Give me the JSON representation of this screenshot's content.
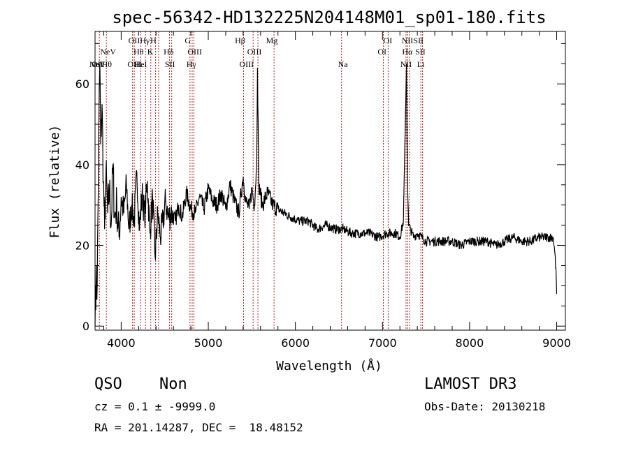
{
  "chart_data": {
    "type": "line",
    "title": "spec-56342-HD132225N204148M01_sp01-180.fits",
    "xlabel": "Wavelength (Å)",
    "ylabel": "Flux (relative)",
    "xlim": [
      3700,
      9100
    ],
    "ylim": [
      -1,
      73
    ],
    "x_ticks": [
      4000,
      5000,
      6000,
      7000,
      8000,
      9000
    ],
    "y_ticks": [
      0,
      20,
      40,
      60
    ],
    "x_minor_step": 200,
    "y_minor_step": 5,
    "series": [
      {
        "name": "flux",
        "x": [
          3700,
          3705,
          3725,
          3745,
          3755,
          3765,
          3780,
          3795,
          3810,
          3825,
          3845,
          3865,
          3885,
          3905,
          3925,
          3950,
          3975,
          4000,
          4030,
          4060,
          4090,
          4120,
          4150,
          4180,
          4210,
          4240,
          4270,
          4300,
          4330,
          4360,
          4390,
          4420,
          4450,
          4480,
          4510,
          4540,
          4580,
          4620,
          4660,
          4700,
          4750,
          4800,
          4850,
          4900,
          4950,
          5000,
          5050,
          5100,
          5150,
          5200,
          5250,
          5300,
          5350,
          5400,
          5430,
          5470,
          5500,
          5530,
          5555,
          5565,
          5580,
          5620,
          5680,
          5740,
          5800,
          5870,
          5950,
          6050,
          6150,
          6250,
          6350,
          6450,
          6550,
          6650,
          6750,
          6850,
          6950,
          7050,
          7150,
          7200,
          7240,
          7260,
          7275,
          7285,
          7300,
          7320,
          7340,
          7360,
          7400,
          7450,
          7500,
          7600,
          7700,
          7800,
          7900,
          8000,
          8100,
          8200,
          8300,
          8400,
          8500,
          8600,
          8700,
          8800,
          8900,
          8960,
          8980,
          8995,
          9000
        ],
        "y": [
          0,
          10,
          10,
          52,
          65,
          45,
          55,
          36,
          24,
          38,
          28,
          34,
          25,
          40,
          27,
          30,
          22,
          32,
          28,
          35,
          24,
          30,
          26,
          38,
          24,
          33,
          27,
          36,
          23,
          32,
          17,
          28,
          22,
          26,
          31,
          27,
          28,
          26,
          30,
          27,
          33,
          29,
          28,
          32,
          29,
          34,
          31,
          30,
          33,
          29,
          35,
          31,
          28,
          37,
          31,
          29,
          34,
          30,
          40,
          64,
          35,
          30,
          33,
          30,
          29,
          28,
          27,
          26,
          26,
          24,
          25,
          24,
          24,
          23,
          23,
          23,
          22,
          23,
          23,
          22,
          26,
          48,
          65,
          38,
          25,
          24,
          23,
          22,
          23,
          22,
          21,
          21,
          21,
          21,
          20,
          21,
          21,
          21,
          20,
          21,
          22,
          21,
          21,
          22,
          22,
          22,
          18,
          12,
          8
        ]
      }
    ],
    "line_groups": [
      {
        "labels": [
          {
            "text": "NeV",
            "x": 3726
          },
          {
            "text": "OII",
            "x": 3727
          },
          {
            "text": "Hθ",
            "x": 3835
          },
          {
            "text": "OIII",
            "x": 4155
          },
          {
            "text": "HeI",
            "x": 4225
          },
          {
            "text": "SII",
            "x": 4560
          },
          {
            "text": "Hγ",
            "x": 4805
          },
          {
            "text": "OIII",
            "x": 5440
          },
          {
            "text": "Na",
            "x": 6545
          },
          {
            "text": "NII",
            "x": 7270
          },
          {
            "text": "Li",
            "x": 7440
          }
        ]
      },
      {
        "labels": [
          {
            "text": "NeV",
            "x": 3850
          },
          {
            "text": "Hθ",
            "x": 4200
          },
          {
            "text": "K",
            "x": 4335
          },
          {
            "text": "Hδ",
            "x": 4545
          },
          {
            "text": "OIII",
            "x": 4845
          },
          {
            "text": "OIII",
            "x": 5530
          },
          {
            "text": "OI",
            "x": 6995
          },
          {
            "text": "Hα",
            "x": 7285
          },
          {
            "text": "SII",
            "x": 7435
          }
        ]
      },
      {
        "labels": [
          {
            "text": "OIIHγ",
            "x": 4205
          },
          {
            "text": "H",
            "x": 4370
          },
          {
            "text": "G",
            "x": 4765
          },
          {
            "text": "Hβ",
            "x": 5365
          },
          {
            "text": "Mg",
            "x": 5730
          },
          {
            "text": "OI",
            "x": 7060
          },
          {
            "text": "NIISII",
            "x": 7345
          }
        ]
      }
    ],
    "emission_lines_x": [
      3750,
      3830,
      4130,
      4150,
      4225,
      4280,
      4340,
      4395,
      4430,
      4555,
      4580,
      4790,
      4815,
      4835,
      5405,
      5515,
      5570,
      5755,
      6530,
      7010,
      7065,
      7270,
      7290,
      7310,
      7440,
      7460
    ],
    "colors": {
      "axes": "#000000",
      "series": "#000000",
      "line_markers": "#b22222"
    }
  },
  "info": {
    "classification": "QSO",
    "subclass": "Non",
    "survey": "LAMOST DR3",
    "redshift_text": "cz = 0.1 ± -9999.0",
    "obs_date_text": "Obs-Date: 20130218",
    "coords_text": "RA = 201.14287, DEC =  18.48152"
  }
}
